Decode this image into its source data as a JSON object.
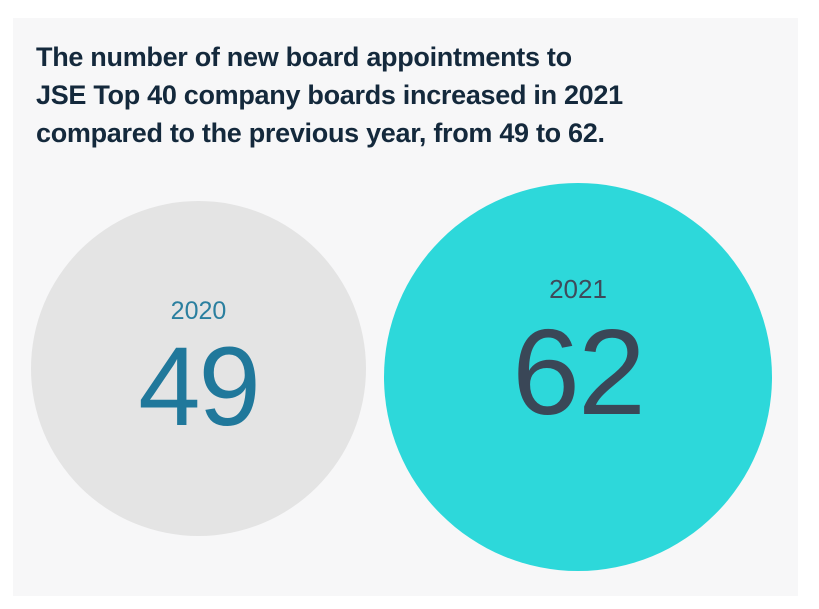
{
  "heading": {
    "text": "The number of new board appointments to JSE Top 40 company boards increased in 2021 compared to the previous year, from 49 to 62.",
    "lines": [
      "The number of new board appointments to",
      "JSE Top 40 company boards increased in 2021",
      "compared to the previous year, from 49 to 62."
    ]
  },
  "chart_data": {
    "type": "bubble",
    "title": "The number of new board appointments to JSE Top 40 company boards increased in 2021 compared to the previous year, from 49 to 62.",
    "categories": [
      "2020",
      "2021"
    ],
    "values": [
      49,
      62
    ],
    "series": [
      {
        "label": "2020",
        "value": 49,
        "circle_color": "#e4e4e4",
        "label_color": "#2a7f9f",
        "value_color": "#20789b"
      },
      {
        "label": "2021",
        "value": 62,
        "circle_color": "#2dd8da",
        "label_color": "#3e4a5a",
        "value_color": "#3a4757"
      }
    ],
    "layout": {
      "legend": "none",
      "grid": false,
      "note": "circle areas proportional to values, smaller gray circle left, larger turquoise circle right"
    }
  },
  "colors": {
    "page_background": "#ffffff",
    "panel_background": "#f7f7f8",
    "headline_text": "#14293c",
    "accent_turquoise": "#2dd8da",
    "neutral_gray": "#e4e4e4"
  }
}
